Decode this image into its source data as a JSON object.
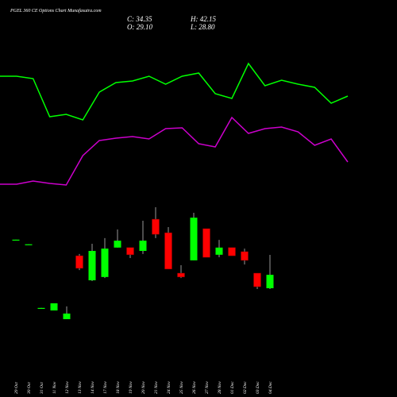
{
  "chart_data": [
    {
      "type": "line",
      "title": "PGEL 360 CE Options Chart Munafasutra.com",
      "ylim": [
        0,
        250
      ],
      "series": [
        {
          "color": "#00ff00",
          "values": [
            154,
            154,
            151,
            103,
            106,
            99,
            134,
            146,
            148,
            154,
            144,
            154,
            158,
            132,
            126,
            170,
            142,
            149,
            144,
            140,
            120,
            129
          ]
        },
        {
          "color": "#cc00cc",
          "values": [
            18,
            18,
            22,
            19,
            17,
            54,
            73,
            76,
            78,
            75,
            88,
            89,
            69,
            65,
            102,
            82,
            88,
            90,
            84,
            67,
            75,
            46
          ]
        }
      ]
    },
    {
      "type": "candlestick",
      "ohlc_labels": [
        "C: 34.35",
        "O: 29.10",
        "H: 42.15",
        "L: 28.80"
      ],
      "categories": [
        "29 Oct",
        "30 Oct",
        "31 Oct",
        "11 Nov",
        "12 Nov",
        "13 Nov",
        "14 Nov",
        "17 Nov",
        "18 Nov",
        "19 Nov",
        "20 Nov",
        "21 Nov",
        "24 Nov",
        "25 Nov",
        "26 Nov",
        "27 Nov",
        "28 Nov",
        "01 Dec",
        "02 Dec",
        "03 Dec",
        "04 Dec"
      ],
      "open": [
        48.0,
        46.2,
        21.3,
        20.4,
        17.0,
        41.8,
        32.2,
        33.5,
        45.0,
        45.0,
        43.7,
        56.1,
        50.8,
        35.0,
        40.0,
        52.4,
        42.2,
        45.0,
        43.4,
        35.0,
        29.1
      ],
      "high": [
        48.1,
        46.3,
        21.4,
        23.2,
        22.0,
        42.5,
        46.5,
        48.7,
        52.1,
        45.0,
        55.5,
        60.8,
        53.0,
        38.1,
        58.6,
        52.4,
        48.0,
        45.0,
        44.6,
        35.0,
        42.15
      ],
      "low": [
        48.0,
        46.2,
        21.3,
        20.4,
        17.0,
        36.2,
        31.9,
        33.1,
        45.0,
        40.9,
        42.5,
        48.7,
        36.6,
        33.1,
        40.0,
        41.2,
        41.2,
        41.8,
        38.4,
        28.8,
        28.8
      ],
      "close": [
        48.1,
        46.3,
        21.4,
        23.2,
        19.2,
        36.9,
        43.7,
        44.6,
        47.7,
        42.2,
        47.7,
        50.2,
        36.6,
        33.5,
        56.7,
        41.2,
        45.0,
        41.8,
        40.0,
        29.7,
        34.35
      ],
      "up_color": "#00ff00",
      "down_color": "#ff0000",
      "ylim": [
        11.4,
        64.2
      ]
    }
  ]
}
